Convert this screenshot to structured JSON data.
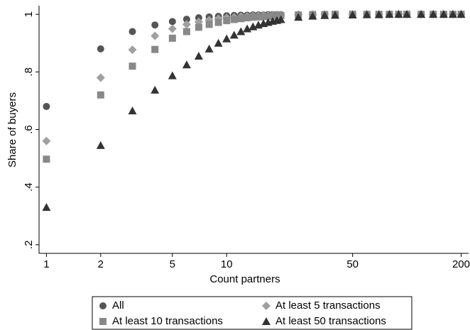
{
  "chart_data": {
    "type": "scatter",
    "x_label": "Count partners",
    "y_label": "Share of buyers",
    "log_x": true,
    "grid": false,
    "xlim": [
      0.91,
      220
    ],
    "ylim": [
      0.17,
      1.03
    ],
    "xticks": [
      1,
      2,
      5,
      10,
      50,
      200
    ],
    "yticks": [
      {
        "value": 0.2,
        "label": ".2"
      },
      {
        "value": 0.4,
        "label": ".4"
      },
      {
        "value": 0.6,
        "label": ".6"
      },
      {
        "value": 0.8,
        "label": ".8"
      },
      1
    ],
    "x": [
      1,
      2,
      3,
      4,
      5,
      6,
      7,
      8,
      9,
      10,
      11,
      12,
      13,
      14,
      15,
      16,
      17,
      18,
      19,
      20,
      25,
      30,
      35,
      40,
      50,
      60,
      70,
      80,
      90,
      100,
      120,
      140,
      160,
      180,
      200
    ],
    "series": [
      {
        "name": "All",
        "color": "#555555",
        "marker": "circle",
        "values": [
          0.68,
          0.88,
          0.94,
          0.963,
          0.975,
          0.983,
          0.988,
          0.991,
          0.993,
          0.995,
          0.996,
          0.997,
          0.997,
          0.998,
          0.998,
          0.998,
          0.999,
          0.999,
          0.999,
          0.999,
          0.999,
          1,
          1,
          1,
          1,
          1,
          1,
          1,
          1,
          1,
          1,
          1,
          1,
          1,
          1
        ]
      },
      {
        "name": "At least 5 transactions",
        "color": "#a0a0a0",
        "marker": "diamond",
        "values": [
          0.56,
          0.78,
          0.877,
          0.925,
          0.95,
          0.965,
          0.974,
          0.98,
          0.985,
          0.988,
          0.99,
          0.992,
          0.993,
          0.994,
          0.995,
          0.996,
          0.996,
          0.997,
          0.997,
          0.998,
          0.999,
          0.999,
          1,
          1,
          1,
          1,
          1,
          1,
          1,
          1,
          1,
          1,
          1,
          1,
          1
        ]
      },
      {
        "name": "At least 10 transactions",
        "color": "#888888",
        "marker": "square",
        "values": [
          0.497,
          0.72,
          0.82,
          0.878,
          0.917,
          0.94,
          0.955,
          0.965,
          0.972,
          0.978,
          0.982,
          0.985,
          0.988,
          0.99,
          0.991,
          0.992,
          0.993,
          0.994,
          0.995,
          0.996,
          0.998,
          0.999,
          0.999,
          1,
          1,
          1,
          1,
          1,
          1,
          1,
          1,
          1,
          1,
          1,
          1
        ]
      },
      {
        "name": "At least 50 transactions",
        "color": "#333333",
        "marker": "triangle",
        "values": [
          0.33,
          0.545,
          0.665,
          0.737,
          0.787,
          0.825,
          0.855,
          0.88,
          0.9,
          0.915,
          0.928,
          0.94,
          0.95,
          0.957,
          0.963,
          0.968,
          0.972,
          0.976,
          0.979,
          0.982,
          0.99,
          0.994,
          0.996,
          0.997,
          0.998,
          0.999,
          0.999,
          1,
          1,
          1,
          1,
          1,
          1,
          1,
          1
        ]
      }
    ]
  }
}
